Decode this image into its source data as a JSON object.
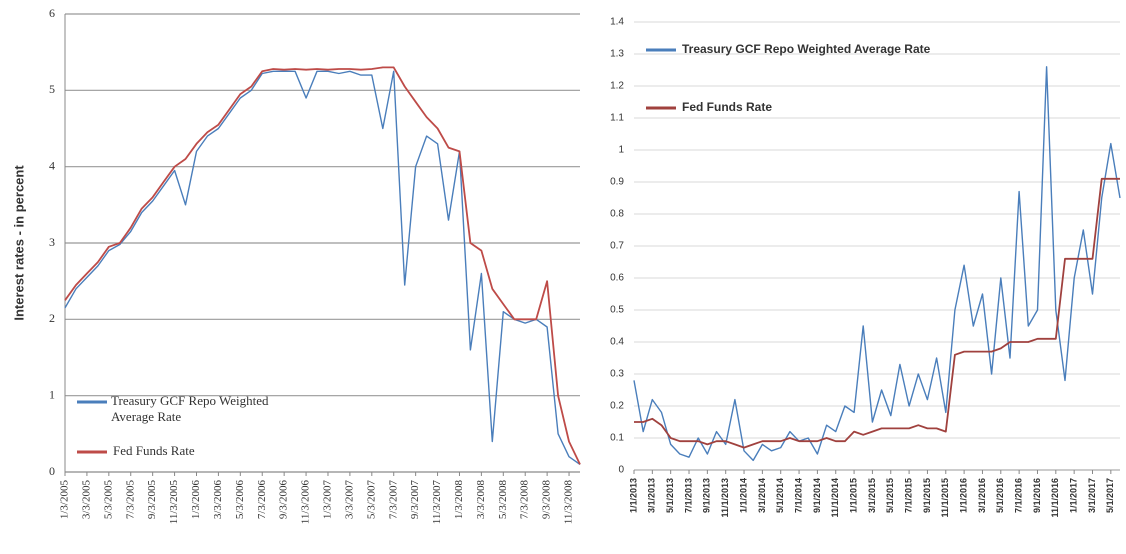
{
  "chart_data": [
    {
      "type": "line",
      "y_label": "Interest rates - in percent",
      "categories": [
        "1/3/2005",
        null,
        "3/3/2005",
        null,
        "5/3/2005",
        null,
        "7/3/2005",
        null,
        "9/3/2005",
        null,
        "11/3/2005",
        null,
        "1/3/2006",
        null,
        "3/3/2006",
        null,
        "5/3/2006",
        null,
        "7/3/2006",
        null,
        "9/3/2006",
        null,
        "11/3/2006",
        null,
        "1/3/2007",
        null,
        "3/3/2007",
        null,
        "5/3/2007",
        null,
        "7/3/2007",
        null,
        "9/3/2007",
        null,
        "11/3/2007",
        null,
        "1/3/2008",
        null,
        "3/3/2008",
        null,
        "5/3/2008",
        null,
        "7/3/2008",
        null,
        "9/3/2008",
        null,
        "11/3/2008",
        null
      ],
      "series": [
        {
          "name": "Treasury GCF Repo Weighted Average Rate",
          "color": "#4a7ebb",
          "values": [
            2.15,
            2.4,
            2.55,
            2.7,
            2.9,
            2.98,
            3.15,
            3.4,
            3.55,
            3.75,
            3.95,
            3.5,
            4.2,
            4.4,
            4.5,
            4.7,
            4.9,
            5.0,
            5.22,
            5.25,
            5.25,
            5.25,
            4.9,
            5.25,
            5.25,
            5.22,
            5.25,
            5.2,
            5.2,
            4.5,
            5.25,
            2.45,
            4.0,
            4.4,
            4.3,
            3.3,
            4.2,
            1.6,
            2.6,
            0.4,
            2.1,
            2.0,
            1.95,
            2.0,
            1.9,
            0.5,
            0.2,
            0.1
          ]
        },
        {
          "name": "Fed Funds Rate",
          "color": "#be4b48",
          "values": [
            2.25,
            2.45,
            2.6,
            2.75,
            2.95,
            3.0,
            3.2,
            3.45,
            3.6,
            3.8,
            4.0,
            4.1,
            4.3,
            4.45,
            4.55,
            4.75,
            4.95,
            5.05,
            5.25,
            5.28,
            5.27,
            5.28,
            5.27,
            5.28,
            5.27,
            5.28,
            5.28,
            5.27,
            5.28,
            5.3,
            5.3,
            5.05,
            4.85,
            4.65,
            4.5,
            4.25,
            4.2,
            3.0,
            2.9,
            2.4,
            2.2,
            2.0,
            2.0,
            2.0,
            2.5,
            1.0,
            0.4,
            0.1
          ]
        }
      ],
      "ylim": [
        0,
        6
      ],
      "yticks": [
        0,
        1,
        2,
        3,
        4,
        5,
        6
      ],
      "grid": true,
      "legend": "lower left"
    },
    {
      "type": "line",
      "categories": [
        "1/1/2013",
        null,
        "3/1/2013",
        null,
        "5/1/2013",
        null,
        "7/1/2013",
        null,
        "9/1/2013",
        null,
        "11/1/2013",
        null,
        "1/1/2014",
        null,
        "3/1/2014",
        null,
        "5/1/2014",
        null,
        "7/1/2014",
        null,
        "9/1/2014",
        null,
        "11/1/2014",
        null,
        "1/1/2015",
        null,
        "3/1/2015",
        null,
        "5/1/2015",
        null,
        "7/1/2015",
        null,
        "9/1/2015",
        null,
        "11/1/2015",
        null,
        "1/1/2016",
        null,
        "3/1/2016",
        null,
        "5/1/2016",
        null,
        "7/1/2016",
        null,
        "9/1/2016",
        null,
        "11/1/2016",
        null,
        "1/1/2017",
        null,
        "3/1/2017",
        null,
        "5/1/2017",
        null
      ],
      "series": [
        {
          "name": "Treasury GCF Repo Weighted Average Rate",
          "color": "#4a7ebb",
          "values": [
            0.28,
            0.12,
            0.22,
            0.18,
            0.08,
            0.05,
            0.04,
            0.1,
            0.05,
            0.12,
            0.08,
            0.22,
            0.06,
            0.03,
            0.08,
            0.06,
            0.07,
            0.12,
            0.09,
            0.1,
            0.05,
            0.14,
            0.12,
            0.2,
            0.18,
            0.45,
            0.15,
            0.25,
            0.17,
            0.33,
            0.2,
            0.3,
            0.22,
            0.35,
            0.18,
            0.5,
            0.64,
            0.45,
            0.55,
            0.3,
            0.6,
            0.35,
            0.87,
            0.45,
            0.5,
            1.26,
            0.5,
            0.28,
            0.6,
            0.75,
            0.55,
            0.85,
            1.02,
            0.85
          ]
        },
        {
          "name": "Fed Funds Rate",
          "color": "#a0413e",
          "values": [
            0.15,
            0.15,
            0.16,
            0.14,
            0.1,
            0.09,
            0.09,
            0.09,
            0.08,
            0.09,
            0.09,
            0.08,
            0.07,
            0.08,
            0.09,
            0.09,
            0.09,
            0.1,
            0.09,
            0.09,
            0.09,
            0.1,
            0.09,
            0.09,
            0.12,
            0.11,
            0.12,
            0.13,
            0.13,
            0.13,
            0.13,
            0.14,
            0.13,
            0.13,
            0.12,
            0.36,
            0.37,
            0.37,
            0.37,
            0.37,
            0.38,
            0.4,
            0.4,
            0.4,
            0.41,
            0.41,
            0.41,
            0.66,
            0.66,
            0.66,
            0.66,
            0.91,
            0.91,
            0.91
          ]
        }
      ],
      "ylim": [
        0,
        1.4
      ],
      "yticks": [
        0,
        0.1,
        0.2,
        0.3,
        0.4,
        0.5,
        0.6,
        0.7,
        0.8,
        0.9,
        1,
        1.1,
        1.2,
        1.3,
        1.4
      ],
      "grid": true,
      "legend": "upper left"
    }
  ]
}
